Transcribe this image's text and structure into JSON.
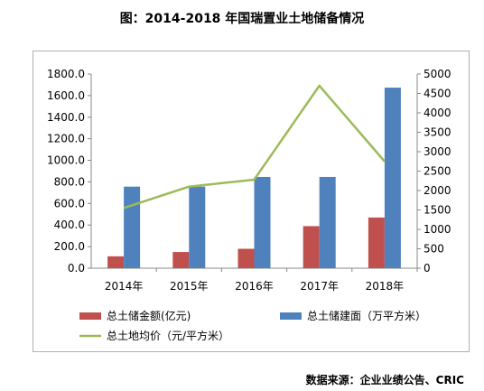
{
  "title": "图：2014-2018 年国瑞置业土地储备情况",
  "source": "数据来源：企业业绩公告、CRIC",
  "chart_data": {
    "type": "bar",
    "categories": [
      "2014年",
      "2015年",
      "2016年",
      "2017年",
      "2018年"
    ],
    "series": [
      {
        "name": "总土储金额(亿元)",
        "type": "bar",
        "axis": "left",
        "color": "#c0504d",
        "values": [
          110,
          150,
          180,
          390,
          470
        ]
      },
      {
        "name": "总土储建面（万平方米）",
        "type": "bar",
        "axis": "right",
        "color": "#4f81bd",
        "values": [
          2100,
          2100,
          2350,
          2350,
          4650
        ]
      },
      {
        "name": "总土地均价（元/平方米）",
        "type": "line",
        "axis": "right",
        "color": "#9bbb59",
        "values": [
          1550,
          2100,
          2280,
          4700,
          2750
        ]
      }
    ],
    "y_left": {
      "min": 0,
      "max": 1800,
      "step": 200,
      "ticks": [
        "0.0",
        "200.0",
        "400.0",
        "600.0",
        "800.0",
        "1000.0",
        "1200.0",
        "1400.0",
        "1600.0",
        "1800.0"
      ]
    },
    "y_right": {
      "min": 0,
      "max": 5000,
      "step": 500,
      "ticks": [
        "0",
        "500",
        "1000",
        "1500",
        "2000",
        "2500",
        "3000",
        "3500",
        "4000",
        "4500",
        "5000"
      ]
    },
    "grid": false,
    "legend_position": "bottom"
  }
}
